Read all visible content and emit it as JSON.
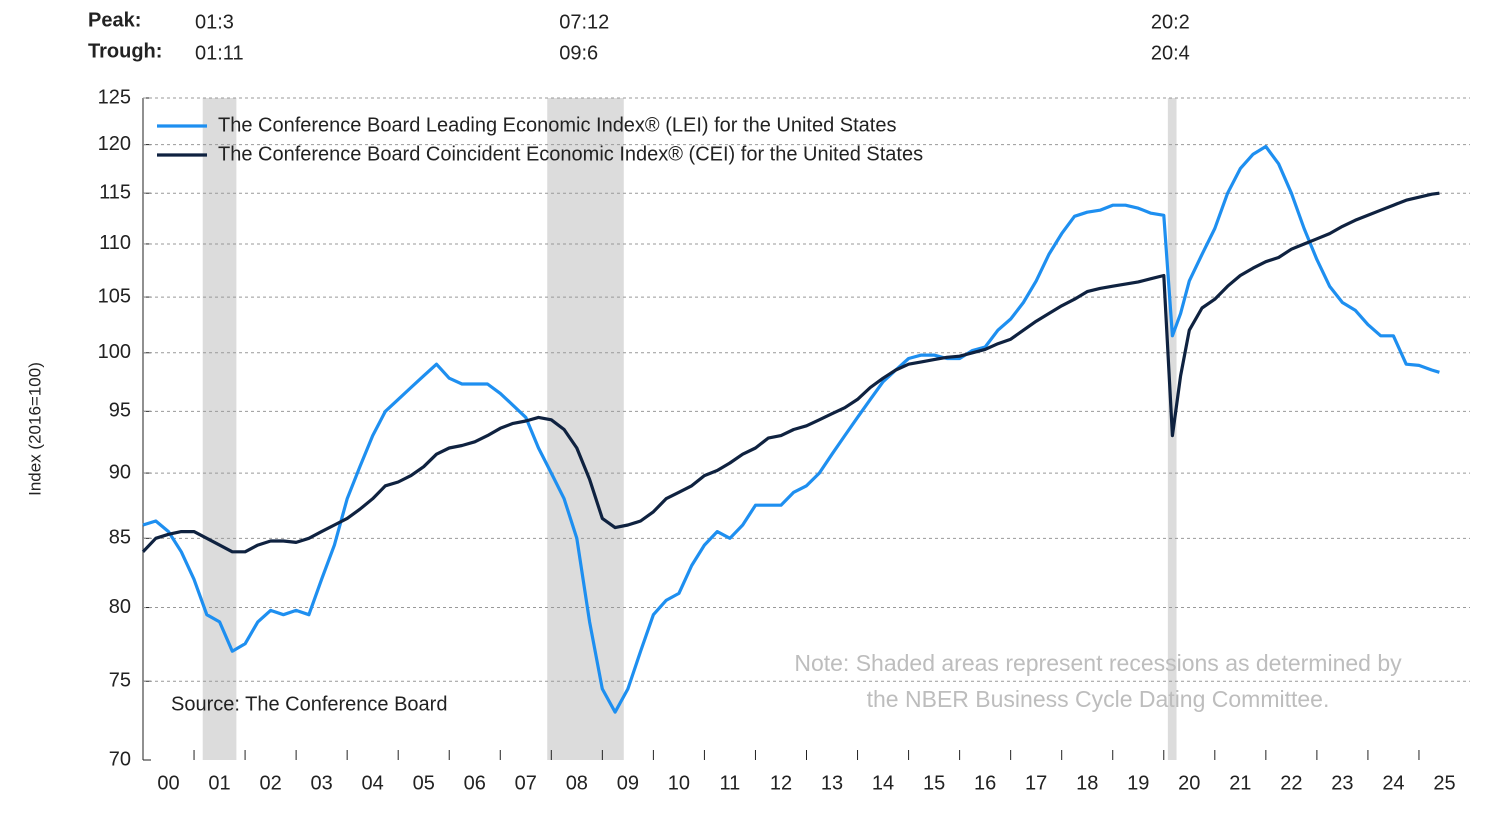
{
  "chart_data": {
    "type": "line",
    "y_label": "Index (2016=100)",
    "peak_label": "Peak:",
    "trough_label": "Trough:",
    "recessions": [
      {
        "peak": "01:3",
        "trough": "01:11",
        "start": 2001.17,
        "end": 2001.83
      },
      {
        "peak": "07:12",
        "trough": "09:6",
        "start": 2007.92,
        "end": 2009.42
      },
      {
        "peak": "20:2",
        "trough": "20:4",
        "start": 2020.08,
        "end": 2020.25
      }
    ],
    "source": "Source: The Conference Board",
    "note": [
      "Note: Shaded areas represent recessions as determined by",
      "the NBER Business Cycle Dating Committee."
    ],
    "log_scale": true,
    "grid": true,
    "legend": "top-left",
    "xlim": [
      2000,
      2026
    ],
    "xticks": [
      {
        "value": 2000,
        "label": "00"
      },
      {
        "value": 2001,
        "label": "01"
      },
      {
        "value": 2002,
        "label": "02"
      },
      {
        "value": 2003,
        "label": "03"
      },
      {
        "value": 2004,
        "label": "04"
      },
      {
        "value": 2005,
        "label": "05"
      },
      {
        "value": 2006,
        "label": "06"
      },
      {
        "value": 2007,
        "label": "07"
      },
      {
        "value": 2008,
        "label": "08"
      },
      {
        "value": 2009,
        "label": "09"
      },
      {
        "value": 2010,
        "label": "10"
      },
      {
        "value": 2011,
        "label": "11"
      },
      {
        "value": 2012,
        "label": "12"
      },
      {
        "value": 2013,
        "label": "13"
      },
      {
        "value": 2014,
        "label": "14"
      },
      {
        "value": 2015,
        "label": "15"
      },
      {
        "value": 2016,
        "label": "16"
      },
      {
        "value": 2017,
        "label": "17"
      },
      {
        "value": 2018,
        "label": "18"
      },
      {
        "value": 2019,
        "label": "19"
      },
      {
        "value": 2020,
        "label": "20"
      },
      {
        "value": 2021,
        "label": "21"
      },
      {
        "value": 2022,
        "label": "22"
      },
      {
        "value": 2023,
        "label": "23"
      },
      {
        "value": 2024,
        "label": "24"
      },
      {
        "value": 2025,
        "label": "25"
      }
    ],
    "ylim": [
      70,
      125
    ],
    "yticks": [
      70,
      75,
      80,
      85,
      90,
      95,
      100,
      105,
      110,
      115,
      120,
      125
    ],
    "x": [
      2000,
      2000.25,
      2000.5,
      2000.75,
      2001,
      2001.25,
      2001.5,
      2001.75,
      2002,
      2002.25,
      2002.5,
      2002.75,
      2003,
      2003.25,
      2003.5,
      2003.75,
      2004,
      2004.25,
      2004.5,
      2004.75,
      2005,
      2005.25,
      2005.5,
      2005.75,
      2006,
      2006.25,
      2006.5,
      2006.75,
      2007,
      2007.25,
      2007.5,
      2007.75,
      2008,
      2008.25,
      2008.5,
      2008.75,
      2009,
      2009.25,
      2009.5,
      2009.75,
      2010,
      2010.25,
      2010.5,
      2010.75,
      2011,
      2011.25,
      2011.5,
      2011.75,
      2012,
      2012.25,
      2012.5,
      2012.75,
      2013,
      2013.25,
      2013.5,
      2013.75,
      2014,
      2014.25,
      2014.5,
      2014.75,
      2015,
      2015.25,
      2015.5,
      2015.75,
      2016,
      2016.25,
      2016.5,
      2016.75,
      2017,
      2017.25,
      2017.5,
      2017.75,
      2018,
      2018.25,
      2018.5,
      2018.75,
      2019,
      2019.25,
      2019.5,
      2019.75,
      2020,
      2020.17,
      2020.33,
      2020.5,
      2020.75,
      2021,
      2021.25,
      2021.5,
      2021.75,
      2022,
      2022.25,
      2022.5,
      2022.75,
      2023,
      2023.25,
      2023.5,
      2023.75,
      2024,
      2024.25,
      2024.5,
      2024.75,
      2025,
      2025.25,
      2025.4
    ],
    "series": [
      {
        "name": "The Conference Board Leading Economic Index® (LEI) for the United States",
        "color": "#1e8ff0",
        "values": [
          86,
          86.3,
          85.5,
          84,
          82,
          79.5,
          79,
          77,
          77.5,
          79,
          79.8,
          79.5,
          79.8,
          79.5,
          82,
          84.5,
          88,
          90.5,
          93,
          95,
          96,
          97,
          98,
          99,
          97.8,
          97.3,
          97.3,
          97.3,
          96.5,
          95.5,
          94.5,
          92,
          90,
          88,
          85,
          79,
          74.5,
          73,
          74.5,
          77,
          79.5,
          80.5,
          81,
          83,
          84.5,
          85.5,
          85,
          86,
          87.5,
          87.5,
          87.5,
          88.5,
          89,
          90,
          91.5,
          93,
          94.5,
          96,
          97.5,
          98.5,
          99.5,
          99.8,
          99.8,
          99.5,
          99.5,
          100.2,
          100.5,
          102,
          103,
          104.5,
          106.5,
          109,
          111,
          112.7,
          113.1,
          113.3,
          113.8,
          113.8,
          113.5,
          113,
          112.8,
          101.5,
          103.5,
          106.5,
          109,
          111.5,
          115,
          117.5,
          119,
          119.8,
          118,
          115,
          111.5,
          108.5,
          106,
          104.5,
          103.8,
          102.5,
          101.5,
          101.5,
          99,
          98.9,
          98.5,
          98.3
        ]
      },
      {
        "name": "The Conference Board Coincident Economic Index® (CEI) for the United States",
        "color": "#0f2240",
        "values": [
          84,
          85,
          85.3,
          85.5,
          85.5,
          85,
          84.5,
          84,
          84,
          84.5,
          84.8,
          84.8,
          84.7,
          85,
          85.5,
          86,
          86.5,
          87.2,
          88,
          89,
          89.3,
          89.8,
          90.5,
          91.5,
          92,
          92.2,
          92.5,
          93,
          93.6,
          94,
          94.2,
          94.5,
          94.3,
          93.5,
          92,
          89.5,
          86.5,
          85.8,
          86,
          86.3,
          87,
          88,
          88.5,
          89,
          89.8,
          90.2,
          90.8,
          91.5,
          92,
          92.8,
          93,
          93.5,
          93.8,
          94.3,
          94.8,
          95.3,
          96,
          97,
          97.8,
          98.5,
          99,
          99.2,
          99.4,
          99.6,
          99.7,
          100,
          100.3,
          100.8,
          101.2,
          102,
          102.8,
          103.5,
          104.2,
          104.8,
          105.5,
          105.8,
          106,
          106.2,
          106.4,
          106.7,
          107,
          93,
          98,
          102,
          104,
          104.8,
          106,
          107,
          107.7,
          108.3,
          108.7,
          109.5,
          110,
          110.5,
          111,
          111.7,
          112.3,
          112.8,
          113.3,
          113.8,
          114.3,
          114.6,
          114.9,
          115
        ]
      }
    ]
  }
}
